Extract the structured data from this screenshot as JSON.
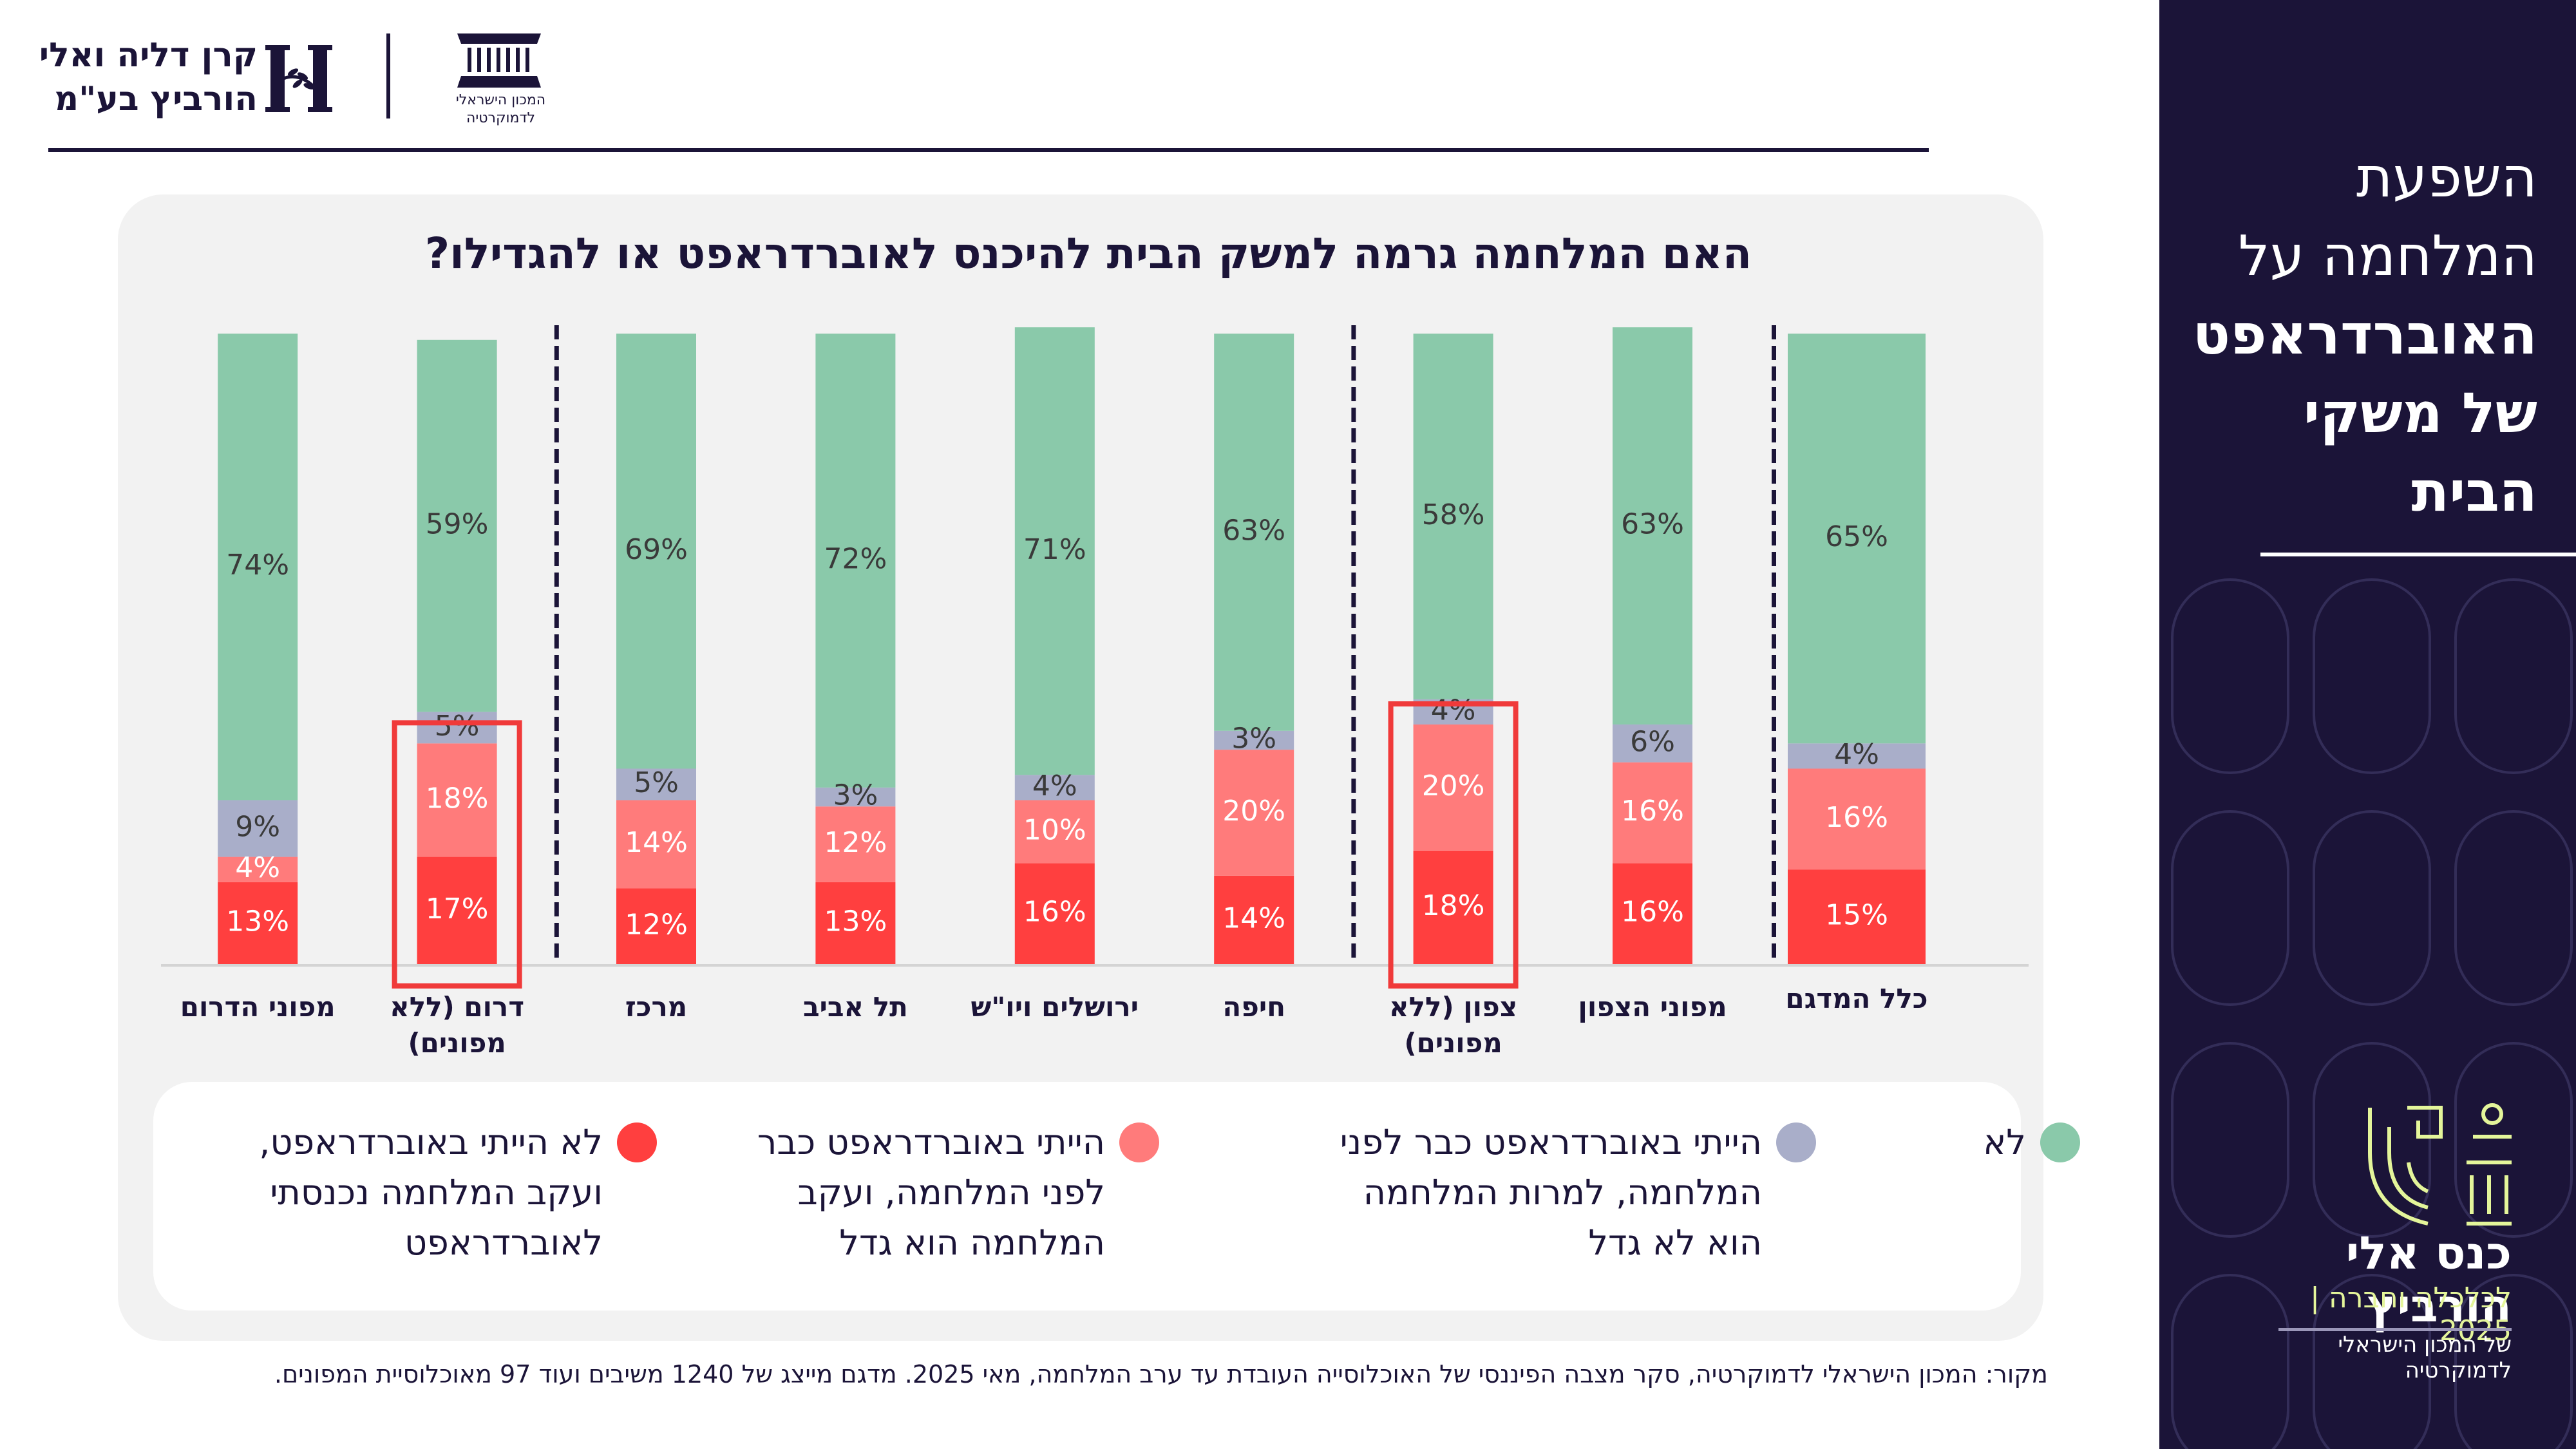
{
  "header": {
    "foundation_logo_text": [
      "קרן דליה ואלי",
      "הורביץ בע\"מ"
    ],
    "institute_logo_text": [
      "המכון הישראלי",
      "לדמוקרטיה"
    ]
  },
  "sidebar": {
    "title_light": [
      "השפעת",
      "המלחמה על"
    ],
    "title_bold": [
      "האוברדראפט",
      "של משקי",
      "הבית"
    ],
    "conference_name": "כנס אלי הורביץ",
    "conference_subtitle": "לכלכלה וחברה | 2025",
    "conference_org": "של המכון הישראלי לדמוקרטיה"
  },
  "colors": {
    "no": "#8ac9aa",
    "overdraft_not_grew": "#a9aec9",
    "overdraft_grew": "#ff7b7b",
    "entered_overdraft": "#ff3f3f",
    "highlight_box": "#f03a3a",
    "navy": "#1b1438"
  },
  "chart_data": {
    "type": "bar",
    "stacked": true,
    "orientation": "vertical",
    "title": "האם המלחמה גרמה למשק הבית להיכנס לאוברדראפט או להגדילו?",
    "xlabel": "",
    "ylabel": "",
    "ylim": [
      0,
      100
    ],
    "unit": "%",
    "grid": false,
    "direction": "rtl",
    "categories": [
      "כלל המדגם",
      "מפוני הצפון",
      "צפון (ללא מפונים)",
      "חיפה",
      "ירושלים ויו\"ש",
      "תל אביב",
      "מרכז",
      "דרום (ללא מפונים)",
      "מפוני הדרום"
    ],
    "series": [
      {
        "name": "לא ייתי באוברדראפט, ועקב המלחמה נכנסתי לאוברדראפט",
        "key": "entered_overdraft",
        "values": [
          15,
          16,
          18,
          14,
          16,
          13,
          12,
          17,
          13
        ]
      },
      {
        "name": "הייתי באוברדראפט כבר לפני המלחמה, ועקב המלחמה הוא גדל",
        "key": "overdraft_grew",
        "values": [
          16,
          16,
          20,
          20,
          10,
          12,
          14,
          18,
          4
        ]
      },
      {
        "name": "הייתי באוברדראפט כבר לפני המלחמה, למרות המלחמה הוא לא גדל",
        "key": "overdraft_not_grew",
        "values": [
          4,
          6,
          4,
          3,
          4,
          3,
          5,
          5,
          9
        ]
      },
      {
        "name": "לא",
        "key": "no",
        "values": [
          65,
          63,
          58,
          63,
          71,
          72,
          69,
          59,
          74
        ]
      }
    ],
    "separators_after_category_index": [
      0,
      2,
      6
    ],
    "highlighted_categories": [
      "צפון (ללא מפונים)",
      "דרום (ללא מפונים)"
    ],
    "legend_placement": "bottom",
    "legend": [
      {
        "key": "no",
        "label": "לא"
      },
      {
        "key": "overdraft_not_grew",
        "label": "הייתי באוברדראפט כבר לפני המלחמה, למרות המלחמה הוא לא גדל"
      },
      {
        "key": "overdraft_grew",
        "label": "הייתי באוברדראפט כבר לפני המלחמה, ועקב המלחמה הוא גדל"
      },
      {
        "key": "entered_overdraft",
        "label": "לא הייתי באוברדראפט, ועקב המלחמה נכנסתי לאוברדראפט"
      }
    ]
  },
  "legend_lines": {
    "no": [
      "לא"
    ],
    "overdraft_not_grew": [
      "הייתי באוברדראפט כבר לפני",
      "המלחמה, למרות המלחמה",
      "הוא לא גדל"
    ],
    "overdraft_grew": [
      "הייתי באוברדראפט כבר",
      "לפני המלחמה, ועקב",
      "המלחמה הוא גדל"
    ],
    "entered_overdraft": [
      "לא הייתי באוברדראפט,",
      "ועקב המלחמה נכנסתי",
      "לאוברדראפט"
    ]
  },
  "category_lines": [
    [
      "כלל המדגם"
    ],
    [
      "מפוני הצפון"
    ],
    [
      "צפון (ללא",
      "מפונים)"
    ],
    [
      "חיפה"
    ],
    [
      "ירושלים ויו\"ש"
    ],
    [
      "תל אביב"
    ],
    [
      "מרכז"
    ],
    [
      "דרום (ללא",
      "מפונים)"
    ],
    [
      "מפוני הדרום"
    ]
  ],
  "footnote": "מקור: המכון הישראלי לדמוקרטיה, סקר מצבה הפיננסי של האוכלוסייה העובדת עד ערב המלחמה, מאי 2025. מדגם מייצג של 1240 משיבים ועוד 97 מאוכלוסיית המפונים."
}
